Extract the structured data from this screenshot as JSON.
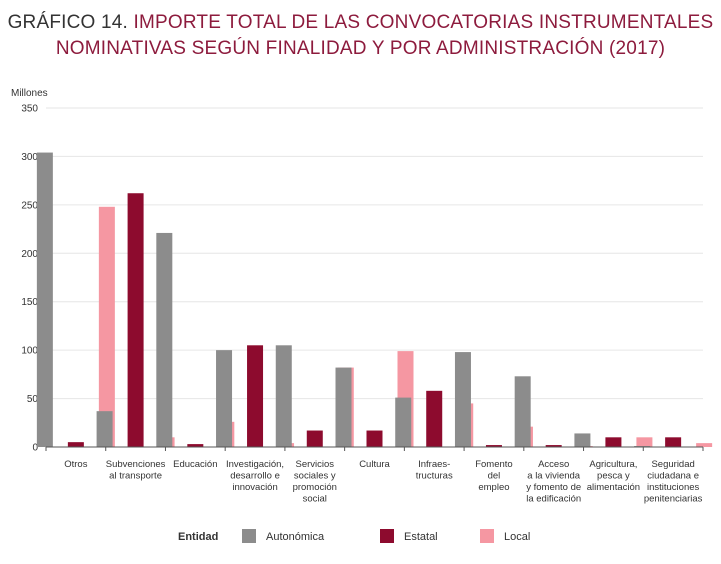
{
  "title": {
    "lead": "GRÁFICO 14.",
    "line1": "IMPORTE TOTAL DE LAS CONVOCATORIAS INSTRUMENTALES",
    "line2": "NOMINATIVAS SEGÚN FINALIDAD Y POR ADMINISTRACIÓN (2017)"
  },
  "chart_data": {
    "type": "bar",
    "ylabel": "Millones",
    "ylim": [
      0,
      350
    ],
    "yticks": [
      0,
      50,
      100,
      150,
      200,
      250,
      300,
      350
    ],
    "categories": [
      [
        "Otros"
      ],
      [
        "Subvenciones",
        "al transporte"
      ],
      [
        "Educación"
      ],
      [
        "Investigación,",
        "desarrollo e",
        "innovación"
      ],
      [
        "Servicios",
        "sociales y",
        "promoción",
        "social"
      ],
      [
        "Cultura"
      ],
      [
        "Infraes-",
        "tructuras"
      ],
      [
        "Fomento",
        "del",
        "empleo"
      ],
      [
        "Acceso",
        "a la vivienda",
        "y fomento de",
        "la edificación"
      ],
      [
        "Agricultura,",
        "pesca y",
        "alimentación"
      ],
      [
        "Seguridad",
        "ciudadana e",
        "instituciones",
        "penitenciarias"
      ]
    ],
    "series": [
      {
        "name": "Autonómica",
        "color": "#8c8c8c",
        "values": [
          304,
          37,
          221,
          100,
          105,
          82,
          51,
          98,
          73,
          14,
          1
        ]
      },
      {
        "name": "Estatal",
        "color": "#8d0b2e",
        "values": [
          5,
          262,
          3,
          105,
          17,
          17,
          58,
          2,
          2,
          10,
          10
        ]
      },
      {
        "name": "Local",
        "color": "#f597a2",
        "values": [
          248,
          10,
          26,
          4,
          82,
          99,
          45,
          21,
          1,
          10,
          4
        ]
      }
    ],
    "legend_title": "Entidad",
    "grid": true
  }
}
